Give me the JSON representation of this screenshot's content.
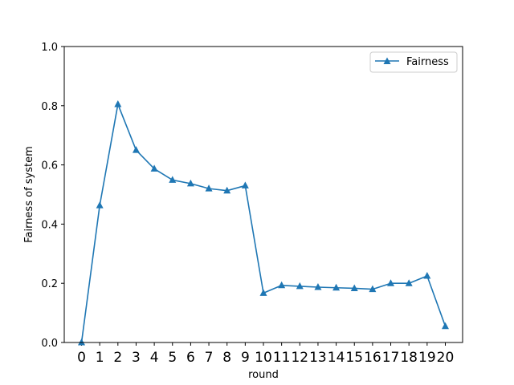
{
  "chart_data": {
    "type": "line",
    "title": "",
    "xlabel": "round",
    "ylabel": "Fairness of system",
    "x": [
      0,
      1,
      2,
      3,
      4,
      5,
      6,
      7,
      8,
      9,
      10,
      11,
      12,
      13,
      14,
      15,
      16,
      17,
      18,
      19,
      20
    ],
    "xticks": [
      "0",
      "1",
      "2",
      "3",
      "4",
      "5",
      "6",
      "7",
      "8",
      "9",
      "10",
      "11",
      "12",
      "13",
      "14",
      "15",
      "16",
      "17",
      "18",
      "19",
      "20"
    ],
    "yticks": [
      "0.0",
      "0.2",
      "0.4",
      "0.6",
      "0.8",
      "1.0"
    ],
    "ytick_values": [
      0.0,
      0.2,
      0.4,
      0.6,
      0.8,
      1.0
    ],
    "xlim": [
      -0.95,
      20.95
    ],
    "ylim": [
      0.0,
      1.0
    ],
    "grid": false,
    "legend_position": "upper right",
    "series": [
      {
        "name": "Fairness",
        "color": "#1f77b4",
        "marker": "triangle",
        "values": [
          0.0,
          0.463,
          0.805,
          0.65,
          0.587,
          0.549,
          0.537,
          0.52,
          0.513,
          0.53,
          0.167,
          0.193,
          0.19,
          0.187,
          0.185,
          0.183,
          0.18,
          0.2,
          0.2,
          0.225,
          0.055
        ]
      }
    ]
  }
}
